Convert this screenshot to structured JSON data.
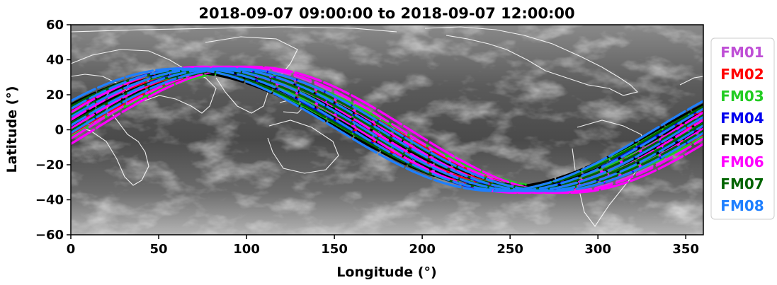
{
  "chart_data": {
    "type": "line",
    "title": "2018-09-07 09:00:00 to 2018-09-07 12:00:00",
    "xlabel": "Longitude (°)",
    "ylabel": "Latitude (°)",
    "xlim": [
      0,
      360
    ],
    "ylim": [
      -60,
      60
    ],
    "xticks": [
      0,
      50,
      100,
      150,
      200,
      250,
      300,
      350
    ],
    "yticks": [
      -60,
      -40,
      -20,
      0,
      20,
      40,
      60
    ],
    "xtick_labels": [
      "0",
      "50",
      "100",
      "150",
      "200",
      "250",
      "300",
      "350"
    ],
    "ytick_labels": [
      "−60",
      "−40",
      "−20",
      "0",
      "20",
      "40",
      "60"
    ],
    "background": "grayscale infrared satellite imagery with white coastlines",
    "grid": false,
    "legend_position": "right",
    "track_model": "sinusoidal ground tracks, latitude = A*sin(longitude - shift)",
    "series": [
      {
        "name": "FM01",
        "color": "#bf4fd6",
        "amplitude": 36,
        "shifts": [
          -13,
          -7,
          -1,
          6
        ]
      },
      {
        "name": "FM02",
        "color": "#ff0000",
        "amplitude": 34,
        "shifts": [
          -19,
          -11,
          -3,
          4
        ]
      },
      {
        "name": "FM03",
        "color": "#22cc22",
        "amplitude": 33,
        "shifts": [
          -24,
          -16,
          -8,
          0,
          7
        ]
      },
      {
        "name": "FM04",
        "color": "#0000ee",
        "amplitude": 35,
        "shifts": [
          -21,
          -13,
          -5,
          3
        ]
      },
      {
        "name": "FM05",
        "color": "#000000",
        "amplitude": 33,
        "shifts": [
          -26,
          -18,
          -9,
          -2
        ]
      },
      {
        "name": "FM06",
        "color": "#ff00ff",
        "amplitude": 36,
        "shifts": [
          -16,
          -9,
          -1,
          8,
          13
        ]
      },
      {
        "name": "FM07",
        "color": "#006400",
        "amplitude": 34,
        "shifts": [
          -23,
          -14,
          -6,
          1
        ]
      },
      {
        "name": "FM08",
        "color": "#1e7fff",
        "amplitude": 35,
        "shifts": [
          -28,
          -20,
          -12,
          -4,
          3
        ]
      }
    ]
  }
}
